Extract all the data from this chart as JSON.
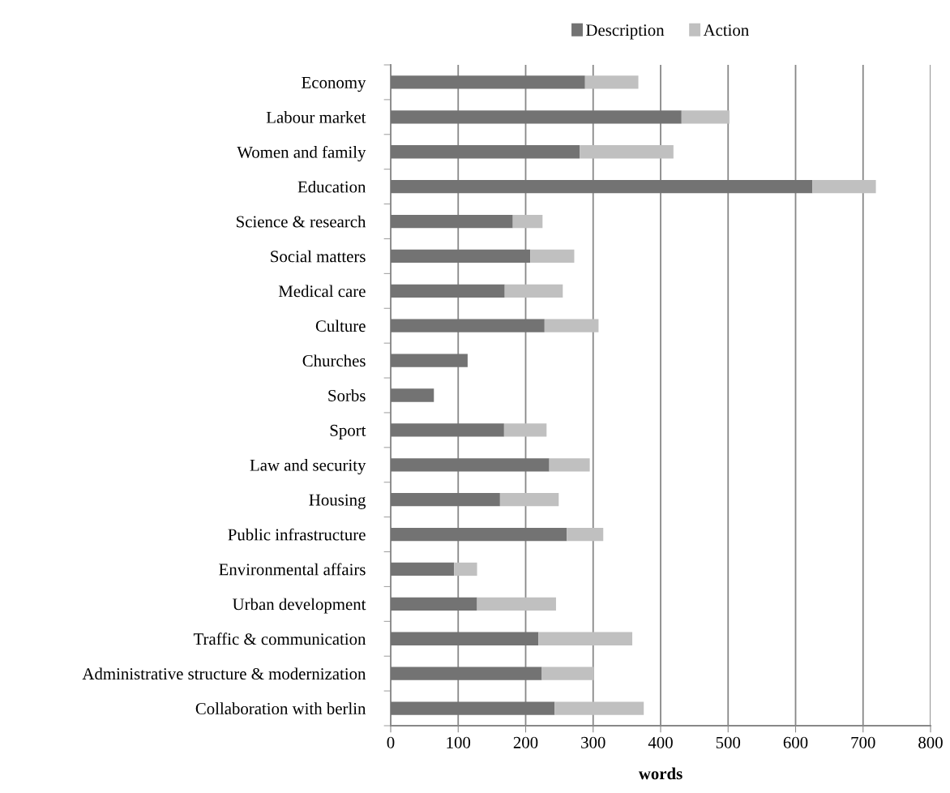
{
  "chart_data": {
    "type": "bar",
    "orientation": "horizontal",
    "stacked": true,
    "xlabel": "words",
    "categories": [
      "Economy",
      "Labour market",
      "Women and family",
      "Education",
      "Science & research",
      "Social matters",
      "Medical care",
      "Culture",
      "Churches",
      "Sorbs",
      "Sport",
      "Law and security",
      "Housing",
      "Public infrastructure",
      "Environmental affairs",
      "Urban development",
      "Traffic & communication",
      "Administrative structure & modernization",
      "Collaboration with berlin"
    ],
    "series": [
      {
        "name": "Description",
        "color": "#737373",
        "values": [
          288,
          431,
          280,
          625,
          181,
          207,
          169,
          228,
          114,
          64,
          168,
          235,
          162,
          261,
          94,
          128,
          219,
          224,
          243
        ]
      },
      {
        "name": "Action",
        "color": "#c0c0c0",
        "values": [
          79,
          71,
          139,
          94,
          44,
          65,
          86,
          80,
          0,
          0,
          63,
          60,
          87,
          54,
          34,
          117,
          139,
          77,
          132
        ]
      }
    ],
    "xlim": [
      0,
      800
    ],
    "xticks": [
      0,
      100,
      200,
      300,
      400,
      500,
      600,
      700,
      800
    ],
    "grid": "x",
    "legend": "top"
  }
}
